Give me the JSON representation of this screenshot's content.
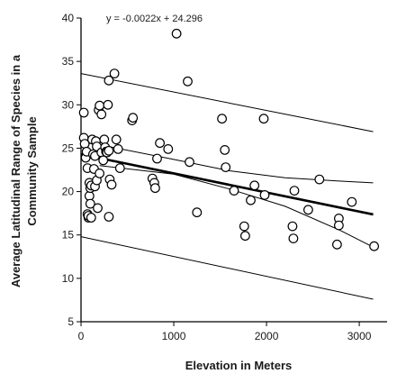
{
  "chart_data": {
    "type": "scatter",
    "title": "",
    "xlabel": "Elevation in Meters",
    "ylabel_lines": [
      "Average Latitudinal Range of Species in a",
      "Community Sample"
    ],
    "xlim": [
      0,
      3300
    ],
    "ylim": [
      5,
      40
    ],
    "x_ticks": [
      "0",
      "1000",
      "2000",
      "3000"
    ],
    "y_ticks": [
      "5",
      "10",
      "15",
      "20",
      "25",
      "30",
      "35",
      "40"
    ],
    "grid": false,
    "marker": "open-circle",
    "annotation": "y = -0.0022x + 24.296",
    "regression": {
      "slope": -0.0022,
      "intercept": 24.296,
      "x_range": [
        0,
        3150
      ]
    },
    "confidence_band": {
      "upper": [
        [
          200,
          25.4
        ],
        [
          1000,
          23.7
        ],
        [
          1600,
          22.4
        ],
        [
          2200,
          21.6
        ],
        [
          2800,
          21.2
        ],
        [
          3150,
          21.0
        ]
      ],
      "lower": [
        [
          200,
          23.0
        ],
        [
          1000,
          22.0
        ],
        [
          1600,
          20.3
        ],
        [
          2200,
          18.3
        ],
        [
          2800,
          15.5
        ],
        [
          3150,
          13.6
        ]
      ]
    },
    "prediction_band": {
      "upper": [
        [
          0,
          33.6
        ],
        [
          3150,
          26.9
        ]
      ],
      "lower": [
        [
          0,
          14.8
        ],
        [
          3150,
          7.6
        ]
      ]
    },
    "points": [
      [
        30,
        29.1
      ],
      [
        30,
        26.2
      ],
      [
        40,
        25.5
      ],
      [
        50,
        23.9
      ],
      [
        60,
        24.6
      ],
      [
        70,
        22.7
      ],
      [
        70,
        17.4
      ],
      [
        80,
        17.0
      ],
      [
        80,
        17.2
      ],
      [
        90,
        21.0
      ],
      [
        90,
        19.5
      ],
      [
        100,
        20.4
      ],
      [
        100,
        18.6
      ],
      [
        110,
        20.7
      ],
      [
        110,
        17.0
      ],
      [
        120,
        26.0
      ],
      [
        130,
        24.3
      ],
      [
        140,
        22.6
      ],
      [
        150,
        24.1
      ],
      [
        150,
        20.6
      ],
      [
        160,
        25.8
      ],
      [
        170,
        25.2
      ],
      [
        170,
        21.3
      ],
      [
        180,
        18.1
      ],
      [
        190,
        29.4
      ],
      [
        200,
        22.1
      ],
      [
        200,
        29.9
      ],
      [
        220,
        28.9
      ],
      [
        220,
        24.5
      ],
      [
        240,
        23.6
      ],
      [
        250,
        26.0
      ],
      [
        260,
        25.1
      ],
      [
        270,
        24.6
      ],
      [
        280,
        24.5
      ],
      [
        290,
        30.0
      ],
      [
        300,
        32.8
      ],
      [
        300,
        24.7
      ],
      [
        300,
        17.1
      ],
      [
        310,
        21.4
      ],
      [
        330,
        20.8
      ],
      [
        360,
        33.6
      ],
      [
        380,
        26.0
      ],
      [
        400,
        24.9
      ],
      [
        420,
        22.7
      ],
      [
        550,
        28.2
      ],
      [
        560,
        28.5
      ],
      [
        770,
        21.5
      ],
      [
        790,
        21.0
      ],
      [
        800,
        20.4
      ],
      [
        820,
        23.8
      ],
      [
        850,
        25.6
      ],
      [
        940,
        24.9
      ],
      [
        1030,
        38.2
      ],
      [
        1150,
        32.7
      ],
      [
        1170,
        23.4
      ],
      [
        1250,
        17.6
      ],
      [
        1520,
        28.4
      ],
      [
        1550,
        24.8
      ],
      [
        1560,
        22.8
      ],
      [
        1650,
        20.1
      ],
      [
        1760,
        16.0
      ],
      [
        1770,
        14.9
      ],
      [
        1830,
        19.0
      ],
      [
        1870,
        20.7
      ],
      [
        1970,
        28.4
      ],
      [
        1980,
        19.6
      ],
      [
        2280,
        16.0
      ],
      [
        2290,
        14.6
      ],
      [
        2300,
        20.1
      ],
      [
        2450,
        17.9
      ],
      [
        2570,
        21.4
      ],
      [
        2760,
        13.9
      ],
      [
        2780,
        16.9
      ],
      [
        2780,
        16.1
      ],
      [
        2920,
        18.8
      ],
      [
        3160,
        13.7
      ]
    ]
  }
}
